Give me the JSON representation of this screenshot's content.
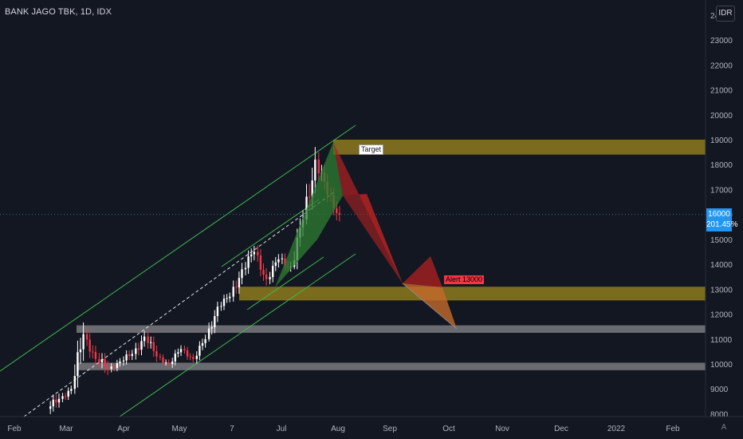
{
  "header": {
    "title": "BANK JAGO TBK, 1D, IDX"
  },
  "controls": {
    "currency_label": "IDR",
    "auto_scale_label": "A"
  },
  "last_price": {
    "value": "16000",
    "change": "201.45%"
  },
  "annotations": {
    "target": "Target",
    "alert": "Alert 13000"
  },
  "colors": {
    "background": "#131722",
    "up": "#ffffff",
    "down": "#f23645",
    "zone_gold": "#807020",
    "zone_grey": "#7a7a7e",
    "channel": "#3fb950",
    "harmonic_green": "#2e7d32",
    "harmonic_red": "#b22222",
    "price_tag": "#2196f3"
  },
  "chart_data": {
    "type": "candlestick",
    "title": "BANK JAGO TBK, 1D, IDX",
    "ylim": [
      8000,
      24000
    ],
    "y_ticks": [
      8000,
      9000,
      10000,
      11000,
      12000,
      13000,
      14000,
      15000,
      16000,
      17000,
      18000,
      19000,
      20000,
      21000,
      22000,
      23000,
      24000
    ],
    "x_ticks": [
      "Feb",
      "Mar",
      "Apr",
      "May",
      "7",
      "Jul",
      "Aug",
      "Sep",
      "Oct",
      "Nov",
      "Dec",
      "2022",
      "Feb"
    ],
    "last_value": 16000,
    "zones": [
      {
        "name": "target-zone",
        "low": 18400,
        "high": 19000,
        "color": "gold"
      },
      {
        "name": "alert-zone",
        "low": 12550,
        "high": 13100,
        "color": "gold"
      },
      {
        "name": "support-zone-1",
        "low": 11250,
        "high": 11550,
        "color": "grey"
      },
      {
        "name": "support-zone-2",
        "low": 9750,
        "high": 10050,
        "color": "grey"
      }
    ],
    "candles_weekly_approx": [
      {
        "period": "Feb-3",
        "open": 8200,
        "high": 9300,
        "low": 7900,
        "close": 8600
      },
      {
        "period": "Feb-4",
        "open": 8600,
        "high": 9200,
        "low": 8300,
        "close": 9000
      },
      {
        "period": "Mar-1",
        "open": 9000,
        "high": 11900,
        "low": 8800,
        "close": 11200
      },
      {
        "period": "Mar-2",
        "open": 11200,
        "high": 11500,
        "low": 9800,
        "close": 10200
      },
      {
        "period": "Mar-3",
        "open": 10200,
        "high": 10800,
        "low": 9200,
        "close": 9800
      },
      {
        "period": "Mar-4",
        "open": 9800,
        "high": 10400,
        "low": 9500,
        "close": 10100
      },
      {
        "period": "Apr-1",
        "open": 10100,
        "high": 11000,
        "low": 9900,
        "close": 10400
      },
      {
        "period": "Apr-2",
        "open": 10400,
        "high": 11600,
        "low": 10100,
        "close": 11100
      },
      {
        "period": "Apr-3",
        "open": 11100,
        "high": 11500,
        "low": 10000,
        "close": 10300
      },
      {
        "period": "Apr-4",
        "open": 10300,
        "high": 10600,
        "low": 9800,
        "close": 10000
      },
      {
        "period": "May-1",
        "open": 10000,
        "high": 10800,
        "low": 9800,
        "close": 10600
      },
      {
        "period": "May-2",
        "open": 10600,
        "high": 10900,
        "low": 10000,
        "close": 10200
      },
      {
        "period": "May-3",
        "open": 10200,
        "high": 11200,
        "low": 10000,
        "close": 11000
      },
      {
        "period": "May-4",
        "open": 11000,
        "high": 12500,
        "low": 10900,
        "close": 12300
      },
      {
        "period": "Jun-1",
        "open": 12300,
        "high": 13000,
        "low": 11900,
        "close": 12700
      },
      {
        "period": "Jun-2",
        "open": 12700,
        "high": 14200,
        "low": 12500,
        "close": 13800
      },
      {
        "period": "Jun-3",
        "open": 13800,
        "high": 14900,
        "low": 13300,
        "close": 14500
      },
      {
        "period": "Jun-4",
        "open": 14500,
        "high": 14800,
        "low": 13100,
        "close": 13400
      },
      {
        "period": "Jul-1",
        "open": 13400,
        "high": 14600,
        "low": 13200,
        "close": 14200
      },
      {
        "period": "Jul-2",
        "open": 14200,
        "high": 14800,
        "low": 13500,
        "close": 13900
      },
      {
        "period": "Jul-3",
        "open": 13900,
        "high": 16200,
        "low": 13800,
        "close": 15800
      },
      {
        "period": "Jul-4",
        "open": 15800,
        "high": 19000,
        "low": 15600,
        "close": 18200
      },
      {
        "period": "Aug-1",
        "open": 18200,
        "high": 18500,
        "low": 16400,
        "close": 16800
      },
      {
        "period": "Aug-2",
        "open": 16800,
        "high": 17200,
        "low": 15300,
        "close": 16000
      }
    ]
  }
}
